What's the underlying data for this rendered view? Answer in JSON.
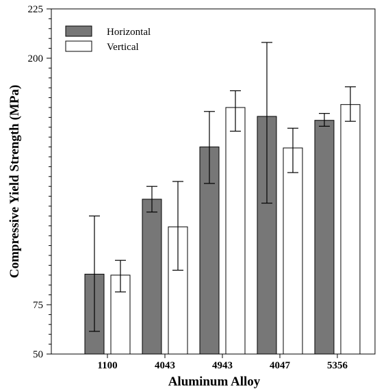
{
  "chart_data": {
    "type": "bar",
    "title": "",
    "xlabel": "Aluminum Alloy",
    "ylabel": "Compressive Yield Strength (MPa)",
    "ylim": [
      50,
      225
    ],
    "y_ticks": [
      50,
      75,
      200,
      225
    ],
    "categories": [
      "1100",
      "4043",
      "4943",
      "4047",
      "5356"
    ],
    "series": [
      {
        "name": "Horizontal",
        "color": "#777777",
        "values": [
          90.5,
          128.5,
          155,
          170.5,
          168.5
        ],
        "err_low": [
          61.5,
          122,
          136.5,
          126.5,
          165.5
        ],
        "err_high": [
          120,
          135,
          173,
          208,
          172
        ]
      },
      {
        "name": "Vertical",
        "color": "#ffffff",
        "values": [
          90,
          114.5,
          175,
          154.5,
          176.5
        ],
        "err_low": [
          81.5,
          92.5,
          163,
          142,
          168
        ],
        "err_high": [
          97.5,
          137.5,
          183.5,
          164.5,
          185.5
        ]
      }
    ],
    "legend_position": "top-left",
    "grid": false
  }
}
